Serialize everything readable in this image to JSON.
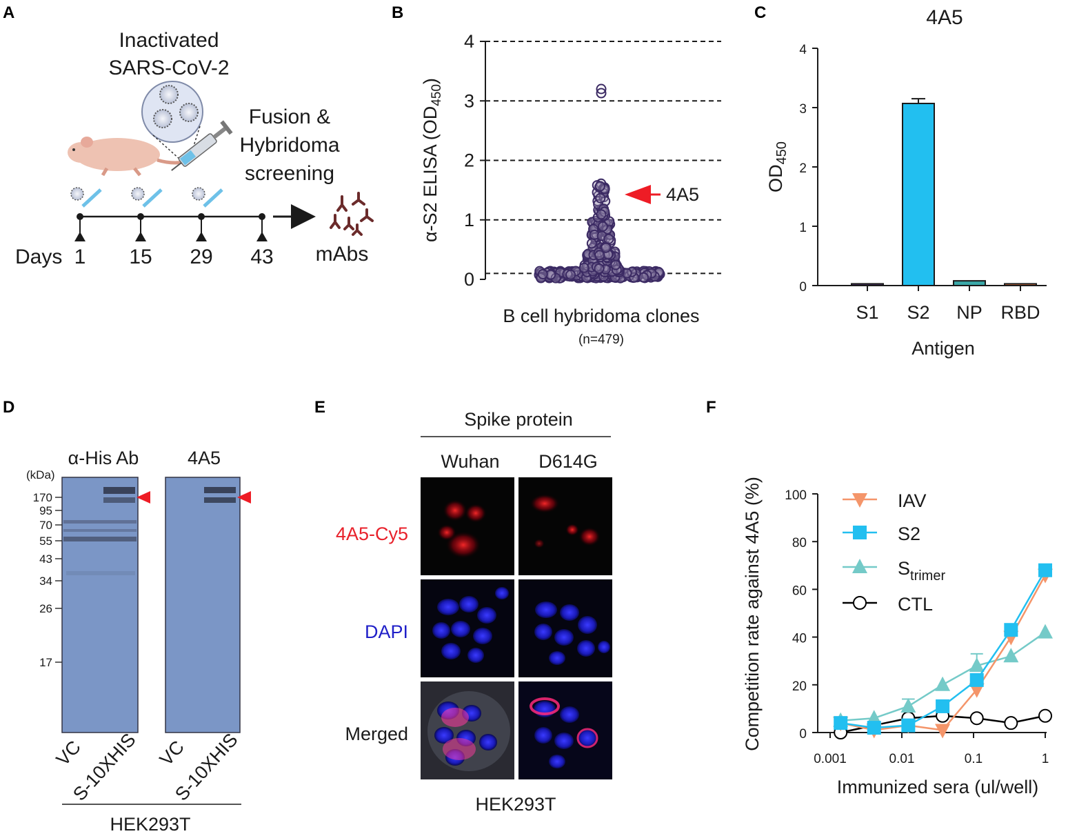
{
  "panels": {
    "A": {
      "letter": "A",
      "title_line1": "Inactivated",
      "title_line2": "SARS-CoV-2",
      "fusion_line1": "Fusion &",
      "fusion_line2": "Hybridoma",
      "fusion_line3": "screening",
      "days_label": "Days",
      "days": [
        "1",
        "15",
        "29",
        "43"
      ],
      "output_label": "mAbs"
    },
    "B": {
      "letter": "B",
      "annotation": "4A5",
      "xlabel_line1": "B cell  hybridoma clones",
      "xlabel_line2": "(n=479)"
    },
    "C": {
      "letter": "C"
    },
    "D": {
      "letter": "D",
      "blot1_title": "α-His Ab",
      "blot2_title": "4A5",
      "kda_unit": "(kDa)",
      "markers": [
        "170",
        "95",
        "70",
        "55",
        "43",
        "34",
        "26",
        "17"
      ],
      "lanes": [
        "VC",
        "S-10XHIS",
        "VC",
        "S-10XHIS"
      ],
      "cell_line": "HEK293T"
    },
    "E": {
      "letter": "E",
      "header": "Spike protein",
      "columns": [
        "Wuhan",
        "D614G"
      ],
      "rows": [
        "4A5-Cy5",
        "DAPI",
        "Merged"
      ],
      "cell_line": "HEK293T",
      "colors": {
        "cy5": "#e8202a",
        "dapi": "#2020c8"
      }
    },
    "F": {
      "letter": "F"
    }
  },
  "chart_data": [
    {
      "id": "B",
      "type": "scatter",
      "title": "",
      "ylabel_prefix": "α-S2 ELISA (OD",
      "ylabel_sub": "450",
      "ylabel_suffix": ")",
      "ylim": [
        0,
        4
      ],
      "yticks": [
        "0",
        "1",
        "2",
        "3",
        "4"
      ],
      "reference_lines": [
        0.1,
        1,
        2,
        3,
        4
      ],
      "highlighted_points": [
        3.2,
        3.13
      ],
      "labelled_clone": {
        "name": "4A5",
        "value": 1.45
      },
      "n_points": 479,
      "color": "#3b2a63"
    },
    {
      "id": "C",
      "type": "bar",
      "title": "4A5",
      "xlabel": "Antigen",
      "ylabel_prefix": "OD",
      "ylabel_sub": "450",
      "categories": [
        "S1",
        "S2",
        "NP",
        "RBD"
      ],
      "values": [
        0.03,
        3.07,
        0.08,
        0.03
      ],
      "errors": [
        0,
        0.08,
        0,
        0
      ],
      "colors": [
        "#4a2a6a",
        "#22bff0",
        "#3aa8a8",
        "#e8703a"
      ],
      "ylim": [
        0,
        4
      ],
      "yticks": [
        "0",
        "1",
        "2",
        "3",
        "4"
      ]
    },
    {
      "id": "F",
      "type": "line",
      "xscale": "log",
      "xlabel": "Immunized sera (ul/well)",
      "ylabel": "Competition rate against 4A5 (%)",
      "ylim": [
        0,
        100
      ],
      "xlim": [
        0.001,
        1
      ],
      "xticks": [
        "0.001",
        "0.01",
        "0.1",
        "1"
      ],
      "yticks": [
        "0",
        "20",
        "40",
        "60",
        "80",
        "100"
      ],
      "x": [
        0.0014,
        0.0041,
        0.0123,
        0.037,
        0.111,
        0.333,
        1
      ],
      "series": [
        {
          "name": "IAV",
          "sub": "",
          "marker": "triangle-down",
          "color": "#f4956a",
          "values": [
            4,
            1,
            3,
            1,
            18,
            40,
            66
          ],
          "errors": [
            0,
            0,
            0,
            0,
            0,
            0,
            0
          ]
        },
        {
          "name": "S2",
          "sub": "",
          "marker": "square",
          "color": "#22bff0",
          "values": [
            4,
            2,
            3,
            11,
            22,
            43,
            68
          ],
          "errors": [
            0,
            0,
            0,
            0,
            0,
            0,
            0
          ]
        },
        {
          "name": "S",
          "sub": "trimer",
          "marker": "triangle-up",
          "color": "#74cac8",
          "values": [
            5,
            6,
            11,
            20,
            28,
            32,
            42
          ],
          "errors": [
            0,
            0,
            3,
            0,
            5,
            0,
            0
          ]
        },
        {
          "name": "CTL",
          "sub": "",
          "marker": "circle-open",
          "color": "#000000",
          "values": [
            0,
            3,
            6,
            7,
            6,
            4,
            7
          ],
          "errors": [
            0,
            0,
            8,
            0,
            0,
            0,
            0
          ]
        }
      ]
    }
  ]
}
